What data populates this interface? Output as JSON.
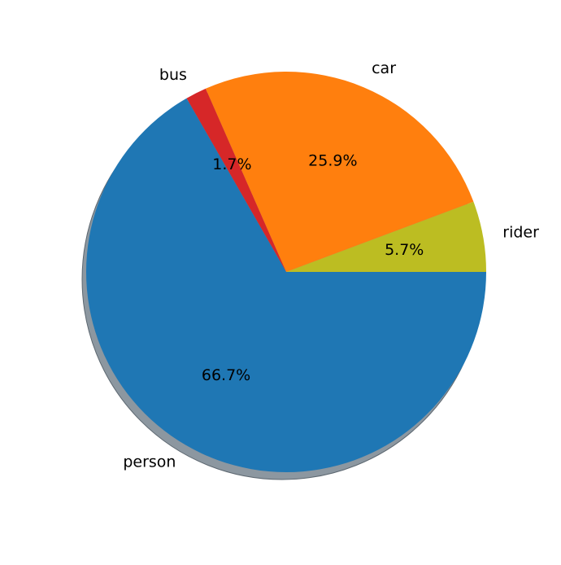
{
  "chart_data": {
    "type": "pie",
    "categories": [
      "rider",
      "car",
      "bus",
      "person"
    ],
    "values": [
      5.7,
      25.9,
      1.7,
      66.7
    ],
    "labels": [
      "rider",
      "car",
      "bus",
      "person"
    ],
    "percent_labels": [
      "5.7%",
      "25.9%",
      "1.7%",
      "66.7%"
    ],
    "colors": [
      "#bcbd22",
      "#ff7f0e",
      "#d62728",
      "#1f77b4"
    ],
    "shadow": true
  }
}
